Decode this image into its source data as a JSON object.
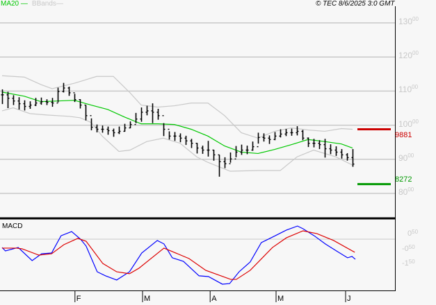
{
  "header": {
    "legend": [
      {
        "label": "MA20",
        "color": "#00c800"
      },
      {
        "label": "BBands",
        "color": "#c8c8c8"
      }
    ],
    "copyright": "© TEC 8/6/2025 3:0 GMT"
  },
  "chart_data": [
    {
      "type": "ohlc",
      "panel": "price",
      "ylim": [
        80,
        130
      ],
      "grid": true,
      "y_ticks": [
        {
          "value": 130,
          "main": "130",
          "frac": "00"
        },
        {
          "value": 120,
          "main": "120",
          "frac": "00"
        },
        {
          "value": 110,
          "main": "110",
          "frac": "00"
        },
        {
          "value": 100,
          "main": "100",
          "frac": "00"
        },
        {
          "value": 90,
          "main": "90",
          "frac": "00"
        },
        {
          "value": 80,
          "main": "80",
          "frac": "00"
        }
      ],
      "bars_hlc": [
        [
          110.5,
          106.2,
          108.9
        ],
        [
          109.8,
          105.0,
          107.9
        ],
        [
          108.8,
          105.9,
          107.1
        ],
        [
          108.2,
          104.6,
          106.3
        ],
        [
          107.3,
          104.3,
          105.5
        ],
        [
          107.0,
          104.8,
          105.9
        ],
        [
          108.0,
          105.6,
          106.5
        ],
        [
          108.1,
          106.0,
          106.9
        ],
        [
          107.6,
          105.9,
          106.7
        ],
        [
          108.0,
          105.4,
          106.5
        ],
        [
          111.0,
          106.7,
          109.9
        ],
        [
          112.4,
          109.6,
          110.9
        ],
        [
          111.3,
          108.6,
          109.5
        ],
        [
          109.2,
          106.8,
          107.5
        ],
        [
          107.6,
          104.9,
          105.9
        ],
        [
          105.9,
          101.4,
          102.8
        ],
        [
          102.0,
          98.5,
          99.4
        ],
        [
          100.2,
          97.9,
          98.8
        ],
        [
          99.9,
          97.8,
          98.8
        ],
        [
          99.6,
          97.2,
          98.4
        ],
        [
          99.0,
          96.6,
          97.8
        ],
        [
          99.6,
          97.4,
          98.2
        ],
        [
          100.4,
          98.1,
          99.2
        ],
        [
          101.1,
          99.1,
          100.2
        ],
        [
          103.6,
          100.6,
          101.8
        ],
        [
          105.2,
          101.0,
          103.8
        ],
        [
          105.7,
          102.9,
          104.2
        ],
        [
          106.4,
          100.6,
          103.8
        ],
        [
          104.8,
          101.6,
          102.8
        ],
        [
          100.6,
          96.8,
          98.8
        ],
        [
          98.2,
          95.8,
          96.8
        ],
        [
          98.0,
          95.4,
          96.8
        ],
        [
          97.6,
          95.0,
          96.2
        ],
        [
          96.9,
          94.2,
          95.4
        ],
        [
          96.0,
          93.3,
          94.7
        ],
        [
          94.8,
          91.7,
          93.3
        ],
        [
          94.0,
          91.6,
          92.7
        ],
        [
          95.4,
          90.8,
          92.7
        ],
        [
          92.8,
          89.6,
          91.3
        ],
        [
          91.3,
          84.9,
          89.3
        ],
        [
          90.6,
          87.4,
          88.7
        ],
        [
          92.0,
          89.0,
          90.1
        ],
        [
          93.9,
          90.6,
          92.1
        ],
        [
          94.3,
          91.3,
          92.7
        ],
        [
          94.0,
          91.5,
          92.7
        ],
        [
          95.2,
          92.5,
          93.7
        ],
        [
          97.8,
          94.6,
          96.4
        ],
        [
          97.6,
          95.2,
          96.2
        ],
        [
          97.0,
          94.5,
          95.8
        ],
        [
          98.0,
          95.6,
          96.8
        ],
        [
          98.8,
          96.4,
          97.4
        ],
        [
          98.9,
          96.8,
          97.8
        ],
        [
          99.0,
          96.9,
          97.8
        ],
        [
          99.7,
          97.0,
          98.2
        ],
        [
          98.6,
          95.6,
          96.2
        ],
        [
          96.4,
          93.6,
          94.7
        ],
        [
          96.0,
          93.5,
          94.7
        ],
        [
          95.6,
          93.0,
          94.3
        ],
        [
          96.0,
          90.5,
          93.1
        ],
        [
          94.4,
          91.5,
          92.7
        ],
        [
          93.8,
          91.0,
          92.1
        ],
        [
          93.0,
          90.2,
          91.3
        ],
        [
          91.8,
          89.6,
          90.5
        ],
        [
          93.0,
          87.8,
          88.6
        ]
      ],
      "series": [
        {
          "name": "MA20",
          "color": "#00c800",
          "points": [
            [
              0,
              109.7
            ],
            [
              4,
              108.5
            ],
            [
              7,
              106.9
            ],
            [
              10,
              107.1
            ],
            [
              13,
              107.3
            ],
            [
              16,
              105.9
            ],
            [
              19,
              104.6
            ],
            [
              22,
              102.4
            ],
            [
              25,
              100.4
            ],
            [
              28,
              100.4
            ],
            [
              31,
              100.2
            ],
            [
              34,
              98.8
            ],
            [
              37,
              96.8
            ],
            [
              40,
              93.9
            ],
            [
              43,
              92.1
            ],
            [
              46,
              91.7
            ],
            [
              49,
              92.9
            ],
            [
              52,
              94.3
            ],
            [
              55,
              95.8
            ],
            [
              58,
              95.2
            ],
            [
              61,
              94.5
            ],
            [
              63,
              93.3
            ]
          ]
        },
        {
          "name": "BBands",
          "part": "upper",
          "color": "#c8c8c8",
          "points": [
            [
              0,
              114.5
            ],
            [
              4,
              114.1
            ],
            [
              7,
              111.9
            ],
            [
              9,
              110.7
            ],
            [
              11,
              111.5
            ],
            [
              13,
              112.3
            ],
            [
              15,
              113.3
            ],
            [
              17,
              114.3
            ],
            [
              20,
              114.3
            ],
            [
              23,
              109.5
            ],
            [
              25,
              105.9
            ],
            [
              28,
              105.3
            ],
            [
              31,
              105.7
            ],
            [
              34,
              106.5
            ],
            [
              37,
              106.5
            ],
            [
              40,
              102.8
            ],
            [
              43,
              97.8
            ],
            [
              46,
              96.2
            ],
            [
              49,
              98.2
            ],
            [
              52,
              99.2
            ],
            [
              55,
              98.6
            ],
            [
              58,
              98.2
            ],
            [
              61,
              99.0
            ],
            [
              63,
              98.8
            ]
          ]
        },
        {
          "name": "BBands",
          "part": "lower",
          "color": "#c8c8c8",
          "points": [
            [
              0,
              104.2
            ],
            [
              2,
              105.1
            ],
            [
              5,
              103.4
            ],
            [
              8,
              103.0
            ],
            [
              12,
              102.6
            ],
            [
              14,
              102.2
            ],
            [
              16,
              100.8
            ],
            [
              18,
              96.8
            ],
            [
              21,
              92.3
            ],
            [
              23,
              92.7
            ],
            [
              26,
              95.2
            ],
            [
              29,
              96.2
            ],
            [
              32,
              94.7
            ],
            [
              35,
              90.7
            ],
            [
              37,
              89.1
            ],
            [
              41,
              86.5
            ],
            [
              46,
              86.7
            ],
            [
              50,
              86.7
            ],
            [
              53,
              90.7
            ],
            [
              56,
              92.7
            ],
            [
              60,
              90.7
            ],
            [
              63,
              88.3
            ]
          ]
        }
      ],
      "levels": [
        {
          "label": "9881",
          "value": 98.81,
          "color": "#cc0000"
        },
        {
          "label": "8272",
          "value": 82.72,
          "color": "#009900"
        }
      ]
    },
    {
      "type": "line",
      "panel": "macd",
      "title": "MACD",
      "ylim": [
        -3.0,
        1.3
      ],
      "y_ticks": [
        {
          "value": 0.5,
          "main": "0",
          "frac": "50"
        },
        {
          "value": -0.5,
          "main": "-0",
          "frac": "50"
        },
        {
          "value": -1.5,
          "main": "-1",
          "frac": "50"
        }
      ],
      "series": [
        {
          "color": "#0000ff",
          "points": [
            [
              0,
              -0.34
            ],
            [
              0.6,
              -0.57
            ],
            [
              2.9,
              -0.34
            ],
            [
              5.4,
              -1.22
            ],
            [
              7.1,
              -0.76
            ],
            [
              8.9,
              -0.71
            ],
            [
              10.6,
              0.45
            ],
            [
              12.5,
              0.73
            ],
            [
              14.1,
              0.22
            ],
            [
              15.1,
              -0.24
            ],
            [
              17.1,
              -1.97
            ],
            [
              18.6,
              -2.24
            ],
            [
              20.6,
              -2.52
            ],
            [
              22.9,
              -1.97
            ],
            [
              25.1,
              -0.71
            ],
            [
              27.9,
              0.13
            ],
            [
              29.1,
              -0.1
            ],
            [
              30.6,
              -1.03
            ],
            [
              32.6,
              -1.27
            ],
            [
              35.4,
              -2.24
            ],
            [
              37.1,
              -2.29
            ],
            [
              39.6,
              -2.8
            ],
            [
              40.9,
              -2.76
            ],
            [
              42.6,
              -1.97
            ],
            [
              44.6,
              -1.31
            ],
            [
              46.6,
              -0.01
            ],
            [
              49.1,
              0.45
            ],
            [
              51.1,
              0.83
            ],
            [
              53.1,
              1.1
            ],
            [
              54.1,
              0.92
            ],
            [
              56.1,
              0.45
            ],
            [
              58.1,
              -0.1
            ],
            [
              60.1,
              -0.57
            ],
            [
              62.1,
              -1.03
            ],
            [
              62.9,
              -0.94
            ],
            [
              63.5,
              -1.13
            ]
          ]
        },
        {
          "color": "#dd0000",
          "points": [
            [
              0,
              -0.38
            ],
            [
              2.6,
              -0.38
            ],
            [
              3.6,
              -0.43
            ],
            [
              6.6,
              -0.85
            ],
            [
              8.9,
              -0.76
            ],
            [
              11.1,
              -0.15
            ],
            [
              13.6,
              0.27
            ],
            [
              15.1,
              0.08
            ],
            [
              18.1,
              -1.41
            ],
            [
              20.6,
              -1.97
            ],
            [
              22.9,
              -2.1
            ],
            [
              24.6,
              -1.73
            ],
            [
              29.1,
              -0.38
            ],
            [
              33.6,
              -1.08
            ],
            [
              36.6,
              -1.87
            ],
            [
              41.1,
              -2.48
            ],
            [
              42.1,
              -2.48
            ],
            [
              44.6,
              -1.87
            ],
            [
              48.6,
              -0.34
            ],
            [
              51.1,
              0.31
            ],
            [
              54.1,
              0.78
            ],
            [
              56.6,
              0.59
            ],
            [
              59.6,
              0.13
            ],
            [
              63.4,
              -0.66
            ]
          ]
        }
      ]
    }
  ],
  "x_axis": {
    "months": [
      {
        "label": "F",
        "at_bar": 13.1
      },
      {
        "label": "M",
        "at_bar": 25.25
      },
      {
        "label": "A",
        "at_bar": 37.4
      },
      {
        "label": "M",
        "at_bar": 49.25
      },
      {
        "label": "J",
        "at_bar": 61.75
      }
    ]
  }
}
